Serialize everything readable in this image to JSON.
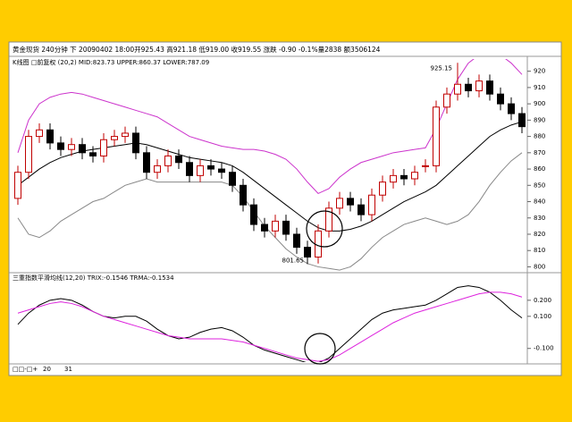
{
  "header": "黄金现货 240分钟 下 20090402 18:00开925.43 高921.18 低919.00 收919.55 涨跌 -0.90 -0.1%量2838 额3506124",
  "footer": [
    "□□-□+",
    "20",
    "31"
  ],
  "chart_data": [
    {
      "type": "candlestick",
      "title": "K线图 □前复权 (20,2) MID:823.73 UPPER:860.37 LOWER:787.09",
      "open": [
        842,
        858,
        880,
        884,
        876,
        872,
        875,
        870,
        868,
        878,
        880,
        882,
        870,
        858,
        862,
        868,
        864,
        856,
        862,
        860,
        858,
        850,
        838,
        826,
        822,
        828,
        820,
        812,
        806,
        822,
        836,
        842,
        838,
        832,
        844,
        852,
        856,
        854,
        862,
        862,
        898,
        906,
        912,
        908,
        914,
        906,
        900,
        894
      ],
      "high": [
        862,
        884,
        888,
        888,
        880,
        879,
        879,
        874,
        882,
        884,
        886,
        886,
        874,
        866,
        872,
        872,
        868,
        866,
        866,
        864,
        862,
        854,
        842,
        830,
        832,
        832,
        824,
        816,
        826,
        840,
        846,
        846,
        842,
        848,
        856,
        860,
        860,
        862,
        866,
        902,
        910,
        925.15,
        916,
        918,
        918,
        910,
        904,
        898
      ],
      "low": [
        838,
        854,
        876,
        872,
        868,
        868,
        866,
        864,
        864,
        874,
        876,
        866,
        854,
        854,
        858,
        860,
        852,
        852,
        856,
        854,
        846,
        834,
        822,
        818,
        818,
        816,
        808,
        801.65,
        802,
        818,
        832,
        834,
        828,
        828,
        840,
        848,
        850,
        850,
        858,
        858,
        894,
        902,
        904,
        904,
        902,
        896,
        890,
        882
      ],
      "close": [
        858,
        880,
        884,
        876,
        872,
        875,
        870,
        868,
        878,
        880,
        882,
        870,
        858,
        862,
        868,
        864,
        856,
        862,
        860,
        858,
        850,
        838,
        826,
        822,
        828,
        820,
        812,
        806,
        822,
        836,
        842,
        838,
        832,
        844,
        852,
        856,
        854,
        858,
        862,
        898,
        906,
        912,
        908,
        914,
        906,
        900,
        894,
        886
      ],
      "up_color": "#c00000",
      "down_color": "#000000",
      "series": [
        {
          "color": "#000000",
          "values": [
            850,
            855,
            860,
            864,
            867,
            869,
            871,
            872,
            873,
            874,
            875,
            876,
            875,
            873,
            871,
            869,
            867,
            866,
            865,
            864,
            862,
            858,
            853,
            848,
            843,
            838,
            833,
            828,
            824,
            822,
            822,
            823,
            825,
            828,
            832,
            836,
            840,
            843,
            846,
            850,
            856,
            862,
            868,
            874,
            880,
            884,
            887,
            889
          ]
        },
        {
          "color": "#cc33cc",
          "values": [
            870,
            890,
            900,
            904,
            906,
            907,
            906,
            904,
            902,
            900,
            898,
            896,
            894,
            892,
            888,
            884,
            880,
            878,
            876,
            874,
            873,
            872,
            872,
            871,
            869,
            866,
            860,
            852,
            845,
            848,
            855,
            860,
            864,
            866,
            868,
            870,
            871,
            872,
            873,
            885,
            900,
            915,
            925,
            930,
            932,
            930,
            925,
            918
          ]
        },
        {
          "color": "#888888",
          "values": [
            830,
            820,
            818,
            822,
            828,
            832,
            836,
            840,
            842,
            846,
            850,
            852,
            854,
            852,
            852,
            852,
            852,
            852,
            852,
            852,
            850,
            843,
            834,
            825,
            818,
            811,
            806,
            802,
            800,
            799,
            798,
            800,
            805,
            812,
            818,
            822,
            826,
            828,
            830,
            828,
            826,
            828,
            832,
            840,
            850,
            858,
            865,
            870
          ]
        }
      ],
      "max_label": "925.15",
      "min_label": "801.65",
      "ylim": [
        797.5,
        927.5
      ],
      "yticks": [
        800,
        810,
        820,
        830,
        840,
        850,
        860,
        870,
        880,
        890,
        900,
        910,
        920
      ]
    },
    {
      "type": "line",
      "title": "三重指数平滑均线(12,20) TRIX:-0.1546 TRMA:-0.1534",
      "series": [
        {
          "color": "#000000",
          "values": [
            0.05,
            0.12,
            0.17,
            0.2,
            0.21,
            0.2,
            0.17,
            0.13,
            0.1,
            0.09,
            0.1,
            0.1,
            0.07,
            0.02,
            -0.02,
            -0.04,
            -0.03,
            0.0,
            0.02,
            0.03,
            0.01,
            -0.03,
            -0.08,
            -0.11,
            -0.13,
            -0.15,
            -0.17,
            -0.19,
            -0.19,
            -0.16,
            -0.1,
            -0.04,
            0.02,
            0.08,
            0.12,
            0.14,
            0.15,
            0.16,
            0.17,
            0.2,
            0.24,
            0.28,
            0.29,
            0.28,
            0.25,
            0.2,
            0.14,
            0.09
          ]
        },
        {
          "color": "#dd22dd",
          "values": [
            0.12,
            0.14,
            0.16,
            0.18,
            0.19,
            0.18,
            0.16,
            0.13,
            0.1,
            0.08,
            0.06,
            0.04,
            0.02,
            0.0,
            -0.02,
            -0.03,
            -0.04,
            -0.04,
            -0.04,
            -0.04,
            -0.05,
            -0.06,
            -0.08,
            -0.1,
            -0.12,
            -0.14,
            -0.16,
            -0.17,
            -0.18,
            -0.17,
            -0.14,
            -0.1,
            -0.06,
            -0.02,
            0.02,
            0.06,
            0.09,
            0.12,
            0.14,
            0.16,
            0.18,
            0.2,
            0.22,
            0.24,
            0.25,
            0.25,
            0.24,
            0.22
          ]
        }
      ],
      "ylim": [
        -0.185,
        0.355
      ],
      "yticks": [
        {
          "value": 0.2,
          "label": "0.200"
        },
        {
          "value": 0.1,
          "label": "0.100"
        },
        {
          "value": -0.1,
          "label": "-0.100"
        }
      ]
    }
  ]
}
